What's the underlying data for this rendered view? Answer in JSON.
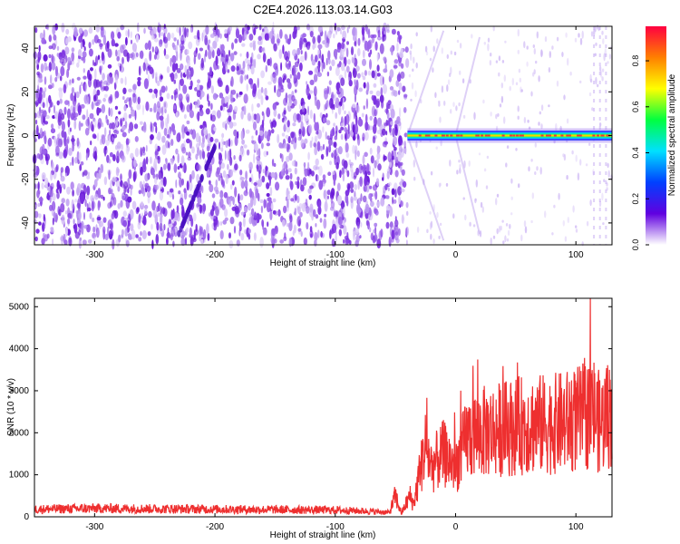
{
  "title": "C2E4.2026.113.03.14.G03",
  "colors": {
    "signal": "#ee2f2f",
    "noise_purple": "#6a1bd8",
    "frame": "#000000"
  },
  "chart_data": [
    {
      "type": "heatmap",
      "name": "spectrogram",
      "xlabel": "Height of straight line (km)",
      "ylabel": "Frequency (Hz)",
      "xlim": [
        -350,
        130
      ],
      "ylim": [
        -50,
        50
      ],
      "xticks": [
        -300,
        -200,
        -100,
        0,
        100
      ],
      "xtick_labels": [
        "-300",
        "-200",
        "-100",
        "0",
        "100"
      ],
      "yticks": [
        -40,
        -20,
        0,
        20,
        40
      ],
      "ytick_labels": [
        "-40",
        "-20",
        "0",
        "20",
        "40"
      ],
      "regions": [
        {
          "x_range": [
            -350,
            -40
          ],
          "description": "broadband noise",
          "amplitude_range": [
            0.05,
            0.25
          ]
        },
        {
          "x_range": [
            -40,
            130
          ],
          "description": "narrow carrier at 0 Hz",
          "carrier_freq": 0,
          "amplitude_peak": 1.0,
          "amplitude_edge": 0.3
        }
      ],
      "colorbar": {
        "label": "Normalized spectral amplitude",
        "range": [
          0.0,
          0.95
        ],
        "ticks": [
          0.0,
          0.2,
          0.4,
          0.6,
          0.8
        ],
        "tick_labels": [
          "0.0",
          "0.2",
          "0.4",
          "0.6",
          "0.8"
        ],
        "colormap": [
          "#ffffff",
          "#6000e0",
          "#0040ff",
          "#00e0ff",
          "#00ff40",
          "#ffff00",
          "#ff8000",
          "#ff0040"
        ]
      },
      "grid": false
    },
    {
      "type": "line",
      "name": "snr",
      "xlabel": "Height of straight line (km)",
      "ylabel": "SNR (10 * v/v)",
      "xlim": [
        -350,
        130
      ],
      "ylim": [
        0,
        5200
      ],
      "xticks": [
        -300,
        -200,
        -100,
        0,
        100
      ],
      "xtick_labels": [
        "-300",
        "-200",
        "-100",
        "0",
        "100"
      ],
      "yticks": [
        0,
        1000,
        2000,
        3000,
        4000,
        5000
      ],
      "ytick_labels": [
        "0",
        "1000",
        "2000",
        "3000",
        "4000",
        "5000"
      ],
      "series": [
        {
          "color": "#ee2f2f",
          "x": [
            -350,
            -300,
            -250,
            -200,
            -150,
            -100,
            -70,
            -55,
            -50,
            -45,
            -38,
            -35,
            -30,
            -25,
            -20,
            -10,
            0,
            10,
            20,
            40,
            60,
            80,
            100,
            115,
            120,
            125,
            130
          ],
          "y": [
            180,
            200,
            190,
            180,
            170,
            160,
            130,
            100,
            500,
            80,
            500,
            300,
            1000,
            1700,
            1200,
            1500,
            1200,
            1900,
            2000,
            2100,
            2200,
            2200,
            2300,
            2500,
            2200,
            2400,
            2500
          ]
        }
      ],
      "grid": false
    }
  ]
}
